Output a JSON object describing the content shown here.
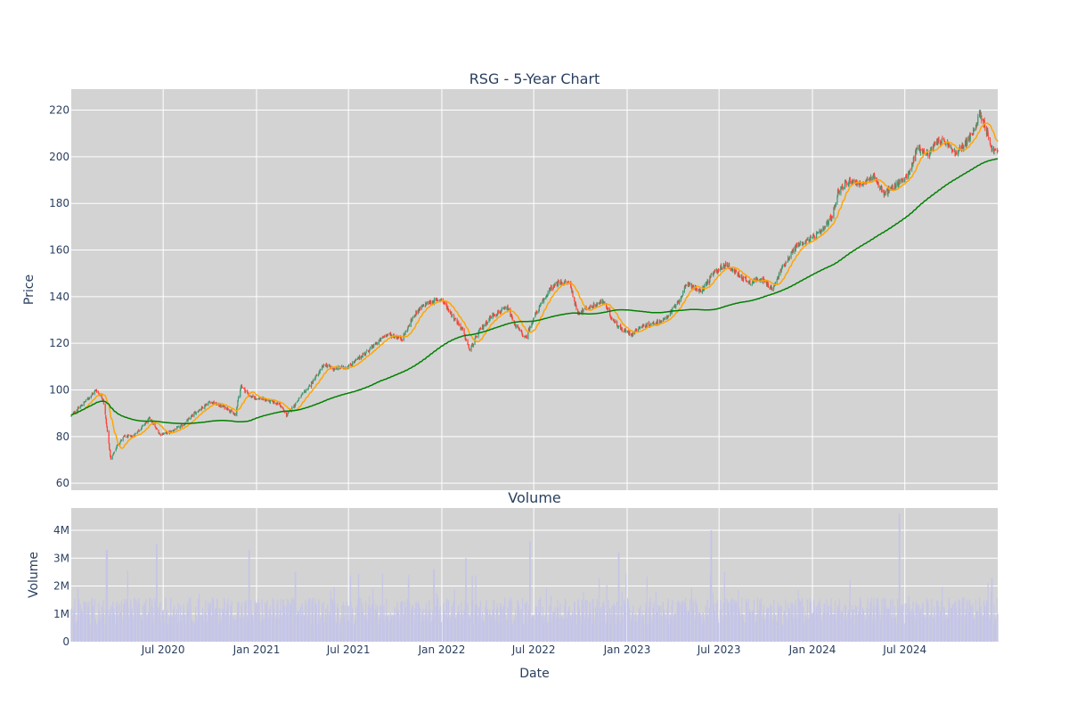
{
  "chart_data": [
    {
      "type": "candlestick",
      "title": "RSG - 5-Year Chart",
      "ylabel": "Price",
      "ylim": [
        57,
        229
      ],
      "yticks": [
        60,
        80,
        100,
        120,
        140,
        160,
        180,
        200,
        220
      ],
      "x_range": [
        "2020-01-02",
        "2024-12-31"
      ],
      "up_color": "#3d9970",
      "down_color": "#ff4136",
      "price_anchors": [
        [
          "2020-01-02",
          89
        ],
        [
          "2020-01-25",
          94
        ],
        [
          "2020-02-20",
          100
        ],
        [
          "2020-03-05",
          96
        ],
        [
          "2020-03-12",
          84
        ],
        [
          "2020-03-20",
          70
        ],
        [
          "2020-04-01",
          76
        ],
        [
          "2020-04-15",
          80
        ],
        [
          "2020-05-01",
          80
        ],
        [
          "2020-05-20",
          84
        ],
        [
          "2020-06-05",
          88
        ],
        [
          "2020-06-15",
          84
        ],
        [
          "2020-06-25",
          81
        ],
        [
          "2020-07-15",
          82
        ],
        [
          "2020-08-10",
          85
        ],
        [
          "2020-09-01",
          90
        ],
        [
          "2020-10-01",
          95
        ],
        [
          "2020-11-05",
          92
        ],
        [
          "2020-11-20",
          89
        ],
        [
          "2020-12-01",
          102
        ],
        [
          "2020-12-20",
          97
        ],
        [
          "2021-01-15",
          96
        ],
        [
          "2021-02-15",
          94
        ],
        [
          "2021-03-01",
          89
        ],
        [
          "2021-03-25",
          96
        ],
        [
          "2021-04-20",
          103
        ],
        [
          "2021-05-15",
          111
        ],
        [
          "2021-06-01",
          109
        ],
        [
          "2021-07-01",
          110
        ],
        [
          "2021-08-15",
          118
        ],
        [
          "2021-09-15",
          124
        ],
        [
          "2021-10-15",
          122
        ],
        [
          "2021-11-10",
          133
        ],
        [
          "2021-12-01",
          137
        ],
        [
          "2021-12-31",
          139
        ],
        [
          "2022-01-25",
          131
        ],
        [
          "2022-02-10",
          126
        ],
        [
          "2022-02-25",
          117
        ],
        [
          "2022-03-15",
          125
        ],
        [
          "2022-04-10",
          132
        ],
        [
          "2022-05-10",
          135
        ],
        [
          "2022-05-25",
          128
        ],
        [
          "2022-06-15",
          122
        ],
        [
          "2022-07-01",
          131
        ],
        [
          "2022-08-01",
          143
        ],
        [
          "2022-08-20",
          146
        ],
        [
          "2022-09-10",
          146
        ],
        [
          "2022-09-25",
          133
        ],
        [
          "2022-10-15",
          135
        ],
        [
          "2022-11-15",
          138
        ],
        [
          "2022-12-01",
          131
        ],
        [
          "2022-12-20",
          126
        ],
        [
          "2023-01-10",
          124
        ],
        [
          "2023-01-25",
          127
        ],
        [
          "2023-02-15",
          128
        ],
        [
          "2023-03-15",
          130
        ],
        [
          "2023-04-10",
          137
        ],
        [
          "2023-05-01",
          146
        ],
        [
          "2023-05-25",
          142
        ],
        [
          "2023-06-20",
          150
        ],
        [
          "2023-07-15",
          154
        ],
        [
          "2023-08-10",
          149
        ],
        [
          "2023-09-01",
          146
        ],
        [
          "2023-09-20",
          148
        ],
        [
          "2023-10-15",
          143
        ],
        [
          "2023-11-01",
          152
        ],
        [
          "2023-12-01",
          162
        ],
        [
          "2023-12-31",
          165
        ],
        [
          "2024-01-20",
          168
        ],
        [
          "2024-02-10",
          175
        ],
        [
          "2024-02-20",
          185
        ],
        [
          "2024-03-15",
          190
        ],
        [
          "2024-04-10",
          188
        ],
        [
          "2024-05-01",
          192
        ],
        [
          "2024-05-20",
          184
        ],
        [
          "2024-06-15",
          188
        ],
        [
          "2024-07-10",
          193
        ],
        [
          "2024-07-25",
          204
        ],
        [
          "2024-08-15",
          201
        ],
        [
          "2024-09-05",
          207
        ],
        [
          "2024-09-20",
          206
        ],
        [
          "2024-10-10",
          201
        ],
        [
          "2024-10-25",
          205
        ],
        [
          "2024-11-15",
          211
        ],
        [
          "2024-11-25",
          219
        ],
        [
          "2024-12-05",
          214
        ],
        [
          "2024-12-20",
          203
        ],
        [
          "2024-12-31",
          202
        ]
      ],
      "series": [
        {
          "color": "#ffa500"
        },
        {
          "color": "#008000"
        }
      ]
    },
    {
      "type": "bar",
      "title": "Volume",
      "ylabel": "Volume",
      "xlabel": "Date",
      "ylim": [
        0,
        4800000
      ],
      "yticks": [
        0,
        1000000,
        2000000,
        3000000,
        4000000
      ],
      "ytick_labels": [
        "0",
        "1M",
        "2M",
        "3M",
        "4M"
      ],
      "bar_color": "#c5c5e8",
      "typical_volume": 1100000,
      "spikes": [
        [
          "2020-03-12",
          3300000
        ],
        [
          "2020-06-19",
          3500000
        ],
        [
          "2020-12-18",
          3300000
        ],
        [
          "2021-03-19",
          2500000
        ],
        [
          "2021-12-17",
          2600000
        ],
        [
          "2022-02-18",
          3000000
        ],
        [
          "2022-06-24",
          3600000
        ],
        [
          "2022-12-16",
          3200000
        ],
        [
          "2023-06-16",
          4000000
        ],
        [
          "2024-06-21",
          4600000
        ],
        [
          "2024-12-20",
          2300000
        ]
      ]
    }
  ],
  "x_axis": {
    "ticks": [
      "2020-07-01",
      "2021-01-01",
      "2021-07-01",
      "2022-01-01",
      "2022-07-01",
      "2023-01-01",
      "2023-07-01",
      "2024-01-01",
      "2024-07-01"
    ],
    "tick_labels": [
      "Jul 2020",
      "Jan 2021",
      "Jul 2021",
      "Jan 2022",
      "Jul 2022",
      "Jan 2023",
      "Jul 2023",
      "Jan 2024",
      "Jul 2024"
    ]
  },
  "colors": {
    "plot_bg": "#d3d3d3",
    "grid": "#ffffff",
    "text": "#2a3f5f"
  }
}
